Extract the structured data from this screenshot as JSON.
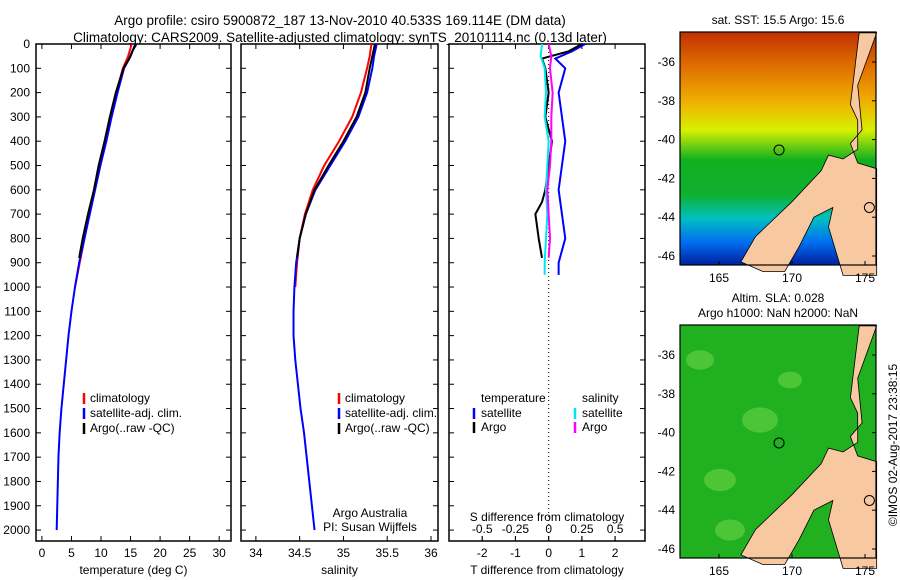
{
  "title_line1": "Argo profile: csiro 5900872_187 13-Nov-2010 40.533S 169.114E (DM data)",
  "title_line2": "Climatology: CARS2009. Satellite-adjusted climatology: synTS_20101114.nc (0.13d later)",
  "copyright": "©IMOS 02-Aug-2017 23:38:15",
  "colors": {
    "climatology": "#ff0000",
    "satellite": "#0000ff",
    "argo": "#000000",
    "sal_satellite": "#00e5ee",
    "sal_argo": "#ff00ff",
    "land": "#f8c8a0"
  },
  "chart_data": [
    {
      "type": "line",
      "name": "temperature",
      "xlabel": "temperature (deg C)",
      "ylabel": "",
      "xlim": [
        -1,
        32
      ],
      "ylim": [
        2045,
        0
      ],
      "xticks": [
        0,
        5,
        10,
        15,
        20,
        25,
        30
      ],
      "yticks": [
        0,
        100,
        200,
        300,
        400,
        500,
        600,
        700,
        800,
        900,
        1000,
        1100,
        1200,
        1300,
        1400,
        1500,
        1600,
        1700,
        1800,
        1900,
        2000
      ],
      "legend": [
        "climatology",
        "satellite-adj. clim.",
        "Argo(..raw -QC)"
      ],
      "series": [
        {
          "name": "climatology",
          "color": "#ff0000",
          "depth": [
            0,
            50,
            100,
            200,
            300,
            400,
            500,
            600,
            700,
            800,
            900,
            1000
          ],
          "values": [
            15.2,
            14.6,
            13.7,
            12.6,
            11.7,
            10.7,
            9.7,
            8.9,
            8.0,
            7.2,
            6.4,
            5.6
          ]
        },
        {
          "name": "satellite-adj. clim.",
          "color": "#0000ff",
          "depth": [
            0,
            50,
            100,
            200,
            300,
            400,
            500,
            600,
            700,
            800,
            900,
            1000,
            1100,
            1200,
            1300,
            1400,
            1500,
            1600,
            1700,
            1800,
            1900,
            2000
          ],
          "values": [
            15.8,
            15.0,
            13.9,
            12.8,
            11.8,
            10.9,
            9.9,
            9.0,
            8.1,
            7.2,
            6.3,
            5.6,
            5.0,
            4.5,
            4.1,
            3.7,
            3.3,
            3.0,
            2.8,
            2.7,
            2.6,
            2.5
          ]
        },
        {
          "name": "Argo",
          "color": "#000000",
          "depth": [
            0,
            30,
            60,
            100,
            200,
            300,
            400,
            500,
            600,
            700,
            800,
            880
          ],
          "values": [
            16.0,
            15.3,
            14.8,
            13.8,
            12.5,
            11.5,
            10.6,
            9.6,
            8.8,
            7.8,
            6.9,
            6.3
          ]
        }
      ]
    },
    {
      "type": "line",
      "name": "salinity",
      "xlabel": "salinity",
      "xlim": [
        33.83,
        36.08
      ],
      "ylim": [
        2045,
        0
      ],
      "xticks": [
        34,
        34.5,
        35,
        35.5,
        36
      ],
      "legend": [
        "climatology",
        "satellite-adj. clim.",
        "Argo(..raw -QC)"
      ],
      "annotation": [
        "Argo Australia",
        "PI: Susan Wijffels"
      ],
      "series": [
        {
          "name": "climatology",
          "color": "#ff0000",
          "depth": [
            0,
            50,
            100,
            200,
            300,
            400,
            500,
            600,
            700,
            800,
            900,
            1000
          ],
          "values": [
            35.32,
            35.3,
            35.27,
            35.2,
            35.1,
            34.95,
            34.78,
            34.65,
            34.56,
            34.5,
            34.47,
            34.45
          ]
        },
        {
          "name": "satellite-adj. clim.",
          "color": "#0000ff",
          "depth": [
            0,
            50,
            100,
            200,
            300,
            400,
            500,
            600,
            700,
            800,
            900,
            1000,
            1100,
            1200,
            1300,
            1400,
            1500,
            1600,
            1700,
            1800,
            1900,
            2000
          ],
          "values": [
            35.38,
            35.35,
            35.33,
            35.27,
            35.17,
            35.02,
            34.85,
            34.68,
            34.57,
            34.5,
            34.46,
            34.44,
            34.43,
            34.43,
            34.45,
            34.48,
            34.51,
            34.55,
            34.58,
            34.61,
            34.64,
            34.67
          ]
        },
        {
          "name": "Argo",
          "color": "#000000",
          "depth": [
            0,
            50,
            100,
            200,
            300,
            400,
            500,
            600,
            700,
            800,
            880
          ],
          "values": [
            35.36,
            35.33,
            35.3,
            35.25,
            35.15,
            35.0,
            34.83,
            34.67,
            34.57,
            34.5,
            34.47
          ]
        }
      ]
    },
    {
      "type": "line",
      "name": "difference",
      "xlabel": "T difference from climatology",
      "xlabel_top": "S difference from climatology",
      "xlim": [
        -3,
        2.9
      ],
      "ylim": [
        2045,
        0
      ],
      "xticks": [
        -2,
        -1,
        0,
        1,
        2
      ],
      "xticks_S": [
        -0.5,
        -0.25,
        0,
        0.25,
        0.5
      ],
      "legend": {
        "temperature_header": "temperature",
        "salinity_header": "salinity",
        "items": [
          "satellite",
          "Argo",
          "satellite",
          "Argo"
        ]
      },
      "series": [
        {
          "name": "T satellite",
          "color": "#0000ff",
          "depth": [
            0,
            30,
            60,
            100,
            200,
            300,
            400,
            500,
            600,
            700,
            800,
            900,
            950
          ],
          "values": [
            1.1,
            0.7,
            0.2,
            0.5,
            0.3,
            0.4,
            0.5,
            0.4,
            0.3,
            0.4,
            0.5,
            0.3,
            0.3
          ]
        },
        {
          "name": "T Argo",
          "color": "#000000",
          "depth": [
            0,
            30,
            60,
            100,
            200,
            300,
            400,
            500,
            600,
            650,
            700,
            800,
            880
          ],
          "values": [
            1.0,
            0.6,
            -0.2,
            -0.1,
            0.0,
            -0.1,
            0.1,
            0.0,
            -0.1,
            -0.2,
            -0.4,
            -0.3,
            -0.2
          ]
        },
        {
          "name": "S satellite",
          "color": "#00e5ee",
          "depth": [
            0,
            50,
            100,
            200,
            300,
            400,
            500,
            600,
            700,
            800,
            900,
            950
          ],
          "values": [
            -0.05,
            -0.06,
            -0.03,
            -0.02,
            -0.03,
            0.0,
            -0.01,
            -0.02,
            -0.01,
            -0.02,
            -0.03,
            -0.03
          ]
        },
        {
          "name": "S Argo",
          "color": "#ff00ff",
          "depth": [
            0,
            50,
            100,
            200,
            300,
            400,
            500,
            600,
            700,
            800,
            880
          ],
          "values": [
            0.0,
            0.02,
            0.01,
            0.03,
            0.02,
            0.02,
            0.01,
            -0.01,
            0.0,
            0.01,
            0.0
          ]
        }
      ]
    }
  ],
  "maps": [
    {
      "name": "sst-map",
      "title": "sat. SST: 15.5 Argo: 15.6",
      "xticks": [
        165,
        170,
        175
      ],
      "yticks": [
        -36,
        -38,
        -40,
        -42,
        -44,
        -46
      ]
    },
    {
      "name": "sla-map",
      "title_line1": "Altim. SLA: 0.028",
      "title_line2": "Argo h1000: NaN h2000: NaN",
      "xticks": [
        165,
        170,
        175
      ],
      "yticks": [
        -36,
        -38,
        -40,
        -42,
        -44,
        -46
      ]
    }
  ],
  "argo_position": {
    "lon": 169.114,
    "lat": -40.533
  }
}
